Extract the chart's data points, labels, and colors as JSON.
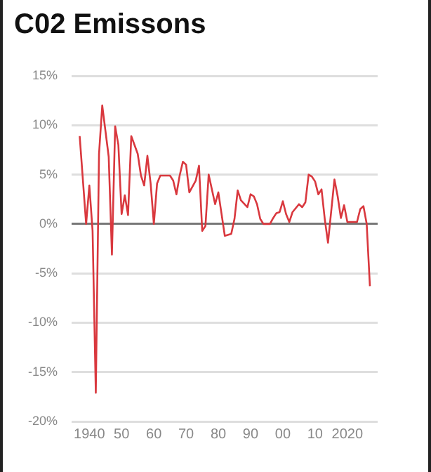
{
  "chart_data": {
    "type": "line",
    "title": "C02 Emissons",
    "x": [
      1937,
      1939,
      1940,
      1941,
      1942,
      1943,
      1944,
      1946,
      1947,
      1948,
      1949,
      1950,
      1951,
      1952,
      1953,
      1955,
      1956,
      1957,
      1958,
      1959,
      1960,
      1961,
      1962,
      1964,
      1965,
      1966,
      1967,
      1968,
      1969,
      1970,
      1971,
      1973,
      1974,
      1975,
      1976,
      1977,
      1979,
      1980,
      1982,
      1984,
      1985,
      1986,
      1987,
      1989,
      1990,
      1991,
      1992,
      1993,
      1994,
      1996,
      1997,
      1998,
      1999,
      2000,
      2001,
      2002,
      2003,
      2005,
      2006,
      2007,
      2008,
      2009,
      2010,
      2011,
      2012,
      2013,
      2014,
      2016,
      2017,
      2018,
      2019,
      2020,
      2021,
      2023,
      2024,
      2025,
      2026,
      2027
    ],
    "series": [
      {
        "color": "#d9383e",
        "values": [
          8.9,
          0,
          3.9,
          -0.7,
          -17.1,
          7.1,
          12,
          6.8,
          -3.1,
          9.9,
          8,
          1,
          2.9,
          0.9,
          8.9,
          7.1,
          4.9,
          3.9,
          6.9,
          4.1,
          0,
          4.1,
          4.9,
          4.9,
          4.9,
          4.4,
          3,
          4.9,
          6.3,
          6,
          3.2,
          4.4,
          5.9,
          -0.7,
          -0.2,
          5,
          2,
          3.2,
          -1.2,
          -1,
          0.5,
          3.4,
          2.4,
          1.7,
          3,
          2.8,
          2,
          0.5,
          0,
          0,
          0.6,
          1.1,
          1.2,
          2.3,
          1,
          0.2,
          1.2,
          2,
          1.7,
          2.2,
          5,
          4.8,
          4.3,
          3,
          3.5,
          0.5,
          -1.9,
          4.5,
          2.8,
          0.6,
          1.9,
          0.2,
          0.2,
          0.2,
          1.5,
          1.8,
          0,
          -6.3
        ]
      }
    ],
    "xlim": [
      1934.5,
      2029.4
    ],
    "xticks": [
      {
        "value": 1940,
        "label": "1940"
      },
      {
        "value": 1950,
        "label": "50"
      },
      {
        "value": 1960,
        "label": "60"
      },
      {
        "value": 1970,
        "label": "70"
      },
      {
        "value": 1980,
        "label": "80"
      },
      {
        "value": 1990,
        "label": "90"
      },
      {
        "value": 2000,
        "label": "00"
      },
      {
        "value": 2010,
        "label": "10"
      },
      {
        "value": 2020,
        "label": "2020"
      }
    ],
    "ylim": [
      -20,
      15
    ],
    "yticks": [
      {
        "value": -20,
        "label": "-20%"
      },
      {
        "value": -15,
        "label": "-15%"
      },
      {
        "value": -10,
        "label": "-10%"
      },
      {
        "value": -5,
        "label": "-5%"
      },
      {
        "value": 0,
        "label": "0%"
      },
      {
        "value": 5,
        "label": "5%"
      },
      {
        "value": 10,
        "label": "10%"
      },
      {
        "value": 15,
        "label": "15%"
      }
    ],
    "grid": "y",
    "legend": false,
    "marker": "none",
    "line_style": "solid"
  }
}
